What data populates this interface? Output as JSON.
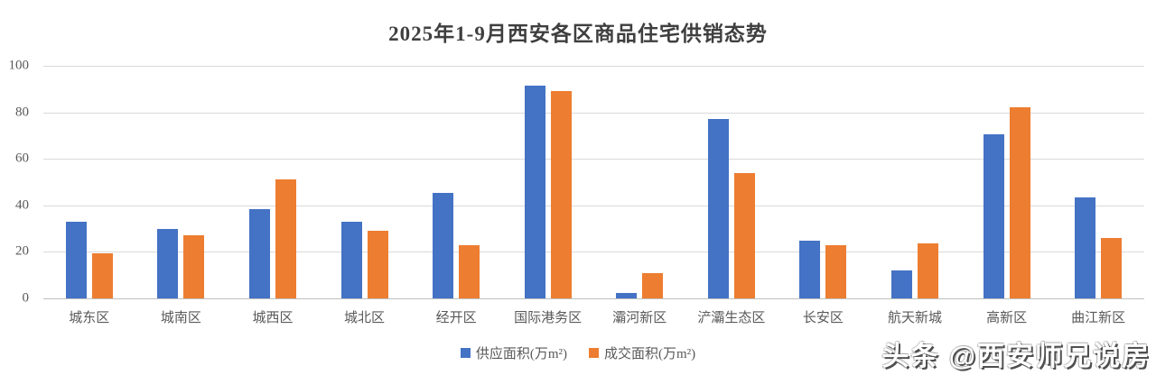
{
  "title": "2025年1-9月西安各区商品住宅供销态势",
  "watermark": {
    "text": "头条 @西安师兄说房"
  },
  "colors": {
    "supply": "#4472C4",
    "transaction": "#ED7D31",
    "gridline": "#D9D9D9",
    "axis_line": "#BFBFBF",
    "tick_text": "#595959",
    "title_text": "#3F3F3F"
  },
  "chart_data": {
    "type": "bar",
    "title": "2025年1-9月西安各区商品住宅供销态势",
    "categories": [
      "城东区",
      "城南区",
      "城西区",
      "城北区",
      "经开区",
      "国际港务区",
      "灞河新区",
      "浐灞生态区",
      "长安区",
      "航天新城",
      "高新区",
      "曲江新区"
    ],
    "series": [
      {
        "name": "供应面积(万m²)",
        "color": "#4472C4",
        "values": [
          33,
          30,
          38.5,
          33,
          45.5,
          91.5,
          2.5,
          77,
          25,
          12,
          70.5,
          43.5
        ]
      },
      {
        "name": "成交面积(万m²)",
        "color": "#ED7D31",
        "values": [
          19.5,
          27,
          51,
          29,
          23,
          89,
          11,
          54,
          23,
          23.5,
          82,
          26
        ]
      }
    ],
    "xlabel": "",
    "ylabel": "",
    "ylim": [
      0,
      100
    ],
    "yticks": [
      0,
      20,
      40,
      60,
      80,
      100
    ],
    "grid": true,
    "legend_position": "bottom"
  }
}
